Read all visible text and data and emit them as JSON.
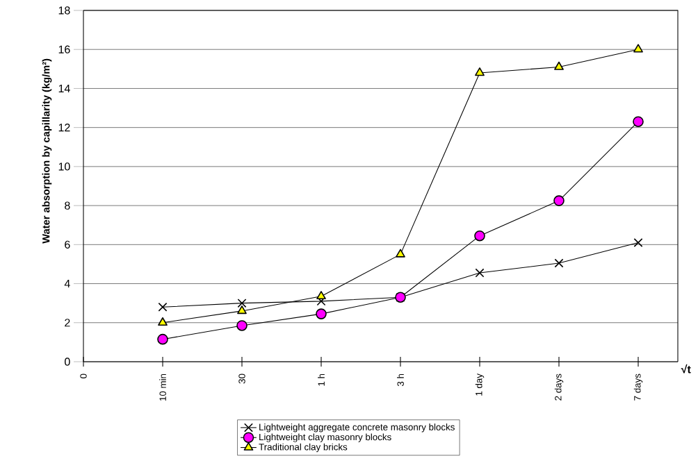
{
  "chart_data": {
    "type": "line",
    "ylabel": "Water absorption by capillarity (kg/m²)",
    "xlabel": "√t",
    "categories": [
      "0",
      "10 min",
      "30",
      "1 h",
      "3 h",
      "1 day",
      "2 days",
      "7 days"
    ],
    "ylim": [
      0,
      18
    ],
    "yticks": [
      0,
      2,
      4,
      6,
      8,
      10,
      12,
      14,
      16,
      18
    ],
    "grid": "y",
    "legend": "bottom",
    "series": [
      {
        "name": "Lightweight aggregate concrete masonry blocks",
        "color": "#000000",
        "marker": "cross",
        "values": [
          null,
          2.8,
          3.0,
          3.1,
          3.3,
          4.55,
          5.05,
          6.1
        ]
      },
      {
        "name": "Lightweight clay masonry blocks",
        "color": "#ff00ff",
        "marker": "circle",
        "values": [
          null,
          1.15,
          1.85,
          2.45,
          3.3,
          6.45,
          8.25,
          12.3
        ]
      },
      {
        "name": "Traditional clay bricks",
        "color": "#ffff00",
        "marker": "triangle",
        "values": [
          null,
          2.0,
          2.6,
          3.35,
          5.5,
          14.8,
          15.1,
          16.0
        ]
      }
    ]
  }
}
